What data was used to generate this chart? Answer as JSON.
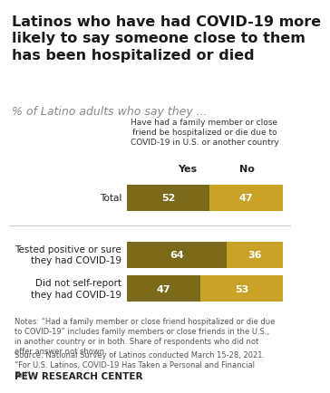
{
  "title": "Latinos who have had COVID-19 more\nlikely to say someone close to them\nhas been hospitalized or died",
  "subtitle": "% of Latino adults who say they ...",
  "legend_title": "Have had a family member or close\nfriend be hospitalized or die due to\nCOVID-19 in U.S. or another country",
  "col_yes": "Yes",
  "col_no": "No",
  "categories": [
    "Total",
    "Tested positive or sure\nthey had COVID-19",
    "Did not self-report\nthey had COVID-19"
  ],
  "yes_values": [
    52,
    64,
    47
  ],
  "no_values": [
    47,
    36,
    53
  ],
  "yes_color": "#7a6a1a",
  "no_color": "#c9a227",
  "notes": "Notes: “Had a family member or close friend hospitalized or die due\nto COVID-19” includes family members or close friends in the U.S.,\nin another country or in both. Share of respondents who did not\noffer answer not shown.",
  "source": "Source: National Survey of Latinos conducted March 15-28, 2021.\n“For U.S. Latinos, COVID-19 Has Taken a Personal and Financial\nToll”",
  "credit": "PEW RESEARCH CENTER",
  "bg_color": "#ffffff",
  "title_fontsize": 11.5,
  "subtitle_fontsize": 9,
  "note_fontsize": 6.0,
  "credit_fontsize": 7.5
}
